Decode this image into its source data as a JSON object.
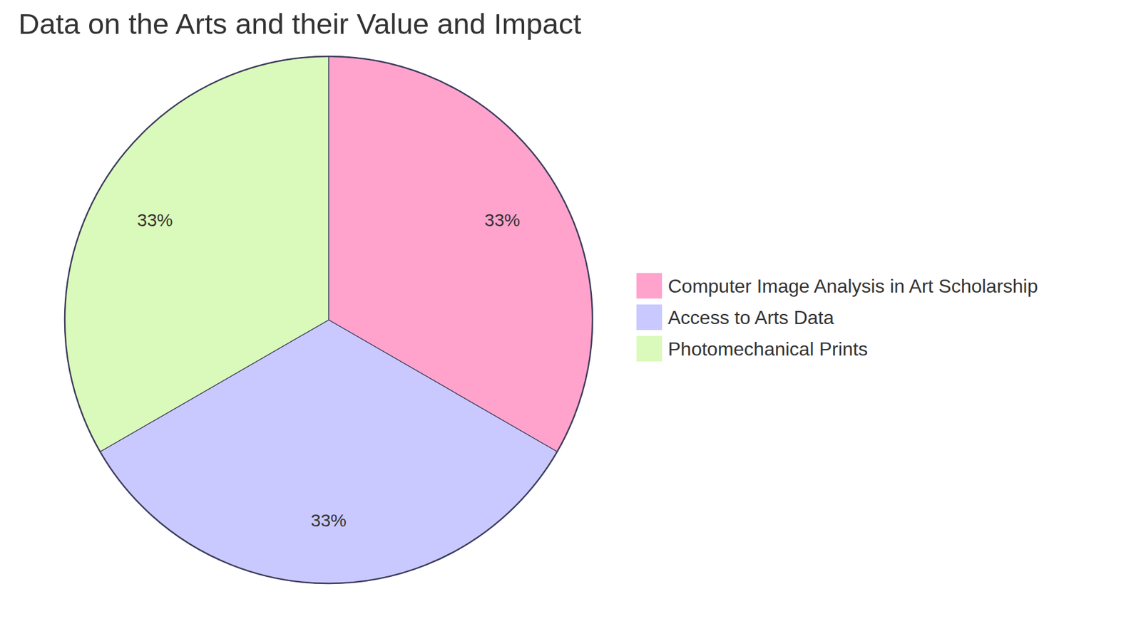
{
  "chart_data": {
    "type": "pie",
    "title": "Data on the Arts and their Value and Impact",
    "categories": [
      "Computer Image Analysis in Art Scholarship",
      "Access to Arts Data",
      "Photomechanical Prints"
    ],
    "values": [
      33,
      33,
      33
    ],
    "value_labels": [
      "33%",
      "33%",
      "33%"
    ],
    "colors": [
      "#ffa3cd",
      "#c9c9ff",
      "#dafabb"
    ],
    "data_labels": true,
    "legend": "right"
  }
}
